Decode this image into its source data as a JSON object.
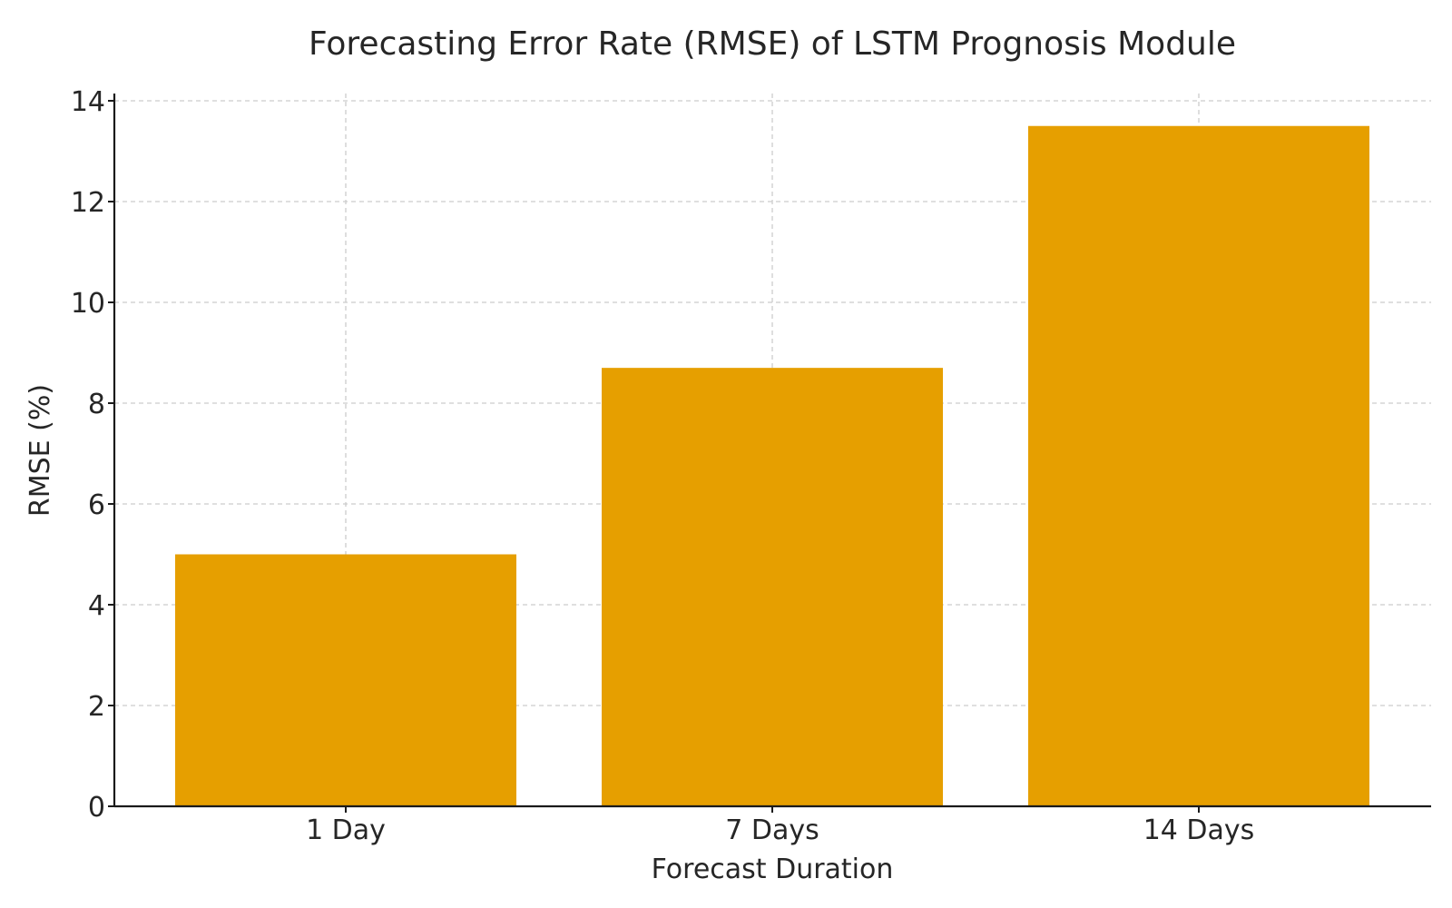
{
  "chart_data": {
    "type": "bar",
    "title": "Forecasting Error Rate (RMSE) of LSTM Prognosis Module",
    "xlabel": "Forecast Duration",
    "ylabel": "RMSE (%)",
    "categories": [
      "1 Day",
      "7 Days",
      "14 Days"
    ],
    "values": [
      5.0,
      8.7,
      13.5
    ],
    "ylim": [
      0,
      14
    ],
    "yticks": [
      0,
      2,
      4,
      6,
      8,
      10,
      12,
      14
    ],
    "grid": true,
    "legend": "none",
    "bar_color": "#e69f00",
    "grid_color": "#cccccc",
    "axis_color": "#1a1a1a",
    "text_color": "#262626"
  }
}
